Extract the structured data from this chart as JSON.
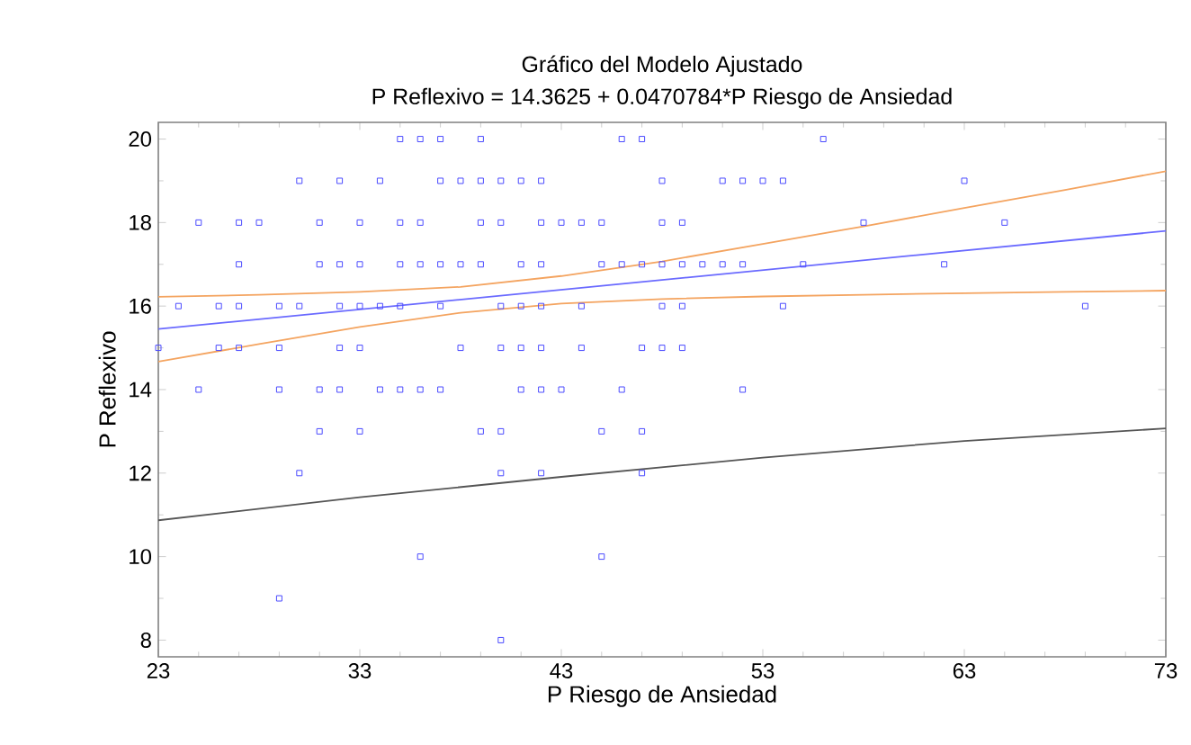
{
  "chart_data": {
    "type": "scatter",
    "title": "Gráfico del Modelo Ajustado",
    "subtitle": "P Reflexivo = 14.3625 + 0.0470784*P Riesgo de Ansiedad",
    "xlabel": "P Riesgo de Ansiedad",
    "ylabel": "P Reflexivo",
    "xlim": [
      23,
      73
    ],
    "xticks": [
      23,
      33,
      43,
      53,
      63,
      73
    ],
    "ylim": [
      7.6,
      20.4
    ],
    "yticks": [
      8,
      10,
      12,
      14,
      16,
      18,
      20
    ],
    "grid": false,
    "series": [
      {
        "marker": "square",
        "color": "#4a4aff",
        "x": [
          35,
          36,
          37,
          39,
          46,
          47,
          56,
          30,
          32,
          34,
          37,
          38,
          39,
          40,
          41,
          42,
          48,
          51,
          52,
          53,
          54,
          63,
          25,
          27,
          28,
          31,
          33,
          35,
          36,
          39,
          40,
          42,
          43,
          44,
          45,
          48,
          49,
          58,
          65,
          27,
          31,
          32,
          33,
          35,
          36,
          37,
          38,
          39,
          41,
          42,
          45,
          46,
          47,
          48,
          49,
          50,
          51,
          52,
          55,
          62,
          24,
          26,
          27,
          29,
          30,
          32,
          33,
          34,
          35,
          37,
          40,
          41,
          42,
          44,
          48,
          49,
          54,
          69,
          23,
          26,
          27,
          29,
          32,
          33,
          38,
          40,
          41,
          42,
          44,
          47,
          48,
          49,
          25,
          29,
          31,
          32,
          34,
          35,
          36,
          37,
          41,
          42,
          43,
          46,
          52,
          31,
          33,
          39,
          40,
          45,
          47,
          30,
          40,
          42,
          47,
          36,
          45,
          29,
          40
        ],
        "values": [
          20,
          20,
          20,
          20,
          20,
          20,
          20,
          19,
          19,
          19,
          19,
          19,
          19,
          19,
          19,
          19,
          19,
          19,
          19,
          19,
          19,
          19,
          18,
          18,
          18,
          18,
          18,
          18,
          18,
          18,
          18,
          18,
          18,
          18,
          18,
          18,
          18,
          18,
          18,
          17,
          17,
          17,
          17,
          17,
          17,
          17,
          17,
          17,
          17,
          17,
          17,
          17,
          17,
          17,
          17,
          17,
          17,
          17,
          17,
          17,
          16,
          16,
          16,
          16,
          16,
          16,
          16,
          16,
          16,
          16,
          16,
          16,
          16,
          16,
          16,
          16,
          16,
          16,
          15,
          15,
          15,
          15,
          15,
          15,
          15,
          15,
          15,
          15,
          15,
          15,
          15,
          15,
          14,
          14,
          14,
          14,
          14,
          14,
          14,
          14,
          14,
          14,
          14,
          14,
          14,
          13,
          13,
          13,
          13,
          13,
          13,
          12,
          12,
          12,
          12,
          10,
          10,
          9,
          8
        ]
      },
      {
        "type": "line",
        "color": "#6a6aff",
        "x": [
          23,
          73
        ],
        "values": [
          15.45,
          17.8
        ]
      },
      {
        "type": "line",
        "color": "#f4a460",
        "x": [
          23,
          28,
          33,
          38,
          43,
          48,
          53,
          58,
          63,
          68,
          73
        ],
        "values": [
          16.22,
          16.27,
          16.34,
          16.46,
          16.72,
          17.07,
          17.49,
          17.91,
          18.35,
          18.78,
          19.23
        ]
      },
      {
        "type": "line",
        "color": "#f4a460",
        "x": [
          23,
          28,
          33,
          38,
          43,
          48,
          53,
          58,
          63,
          68,
          73
        ],
        "values": [
          14.67,
          15.09,
          15.5,
          15.84,
          16.06,
          16.17,
          16.23,
          16.27,
          16.31,
          16.34,
          16.37
        ]
      },
      {
        "type": "line",
        "color": "#555555",
        "x": [
          23,
          33,
          43,
          53,
          63,
          73
        ],
        "values": [
          10.87,
          11.42,
          11.91,
          12.37,
          12.77,
          13.07
        ]
      }
    ]
  }
}
